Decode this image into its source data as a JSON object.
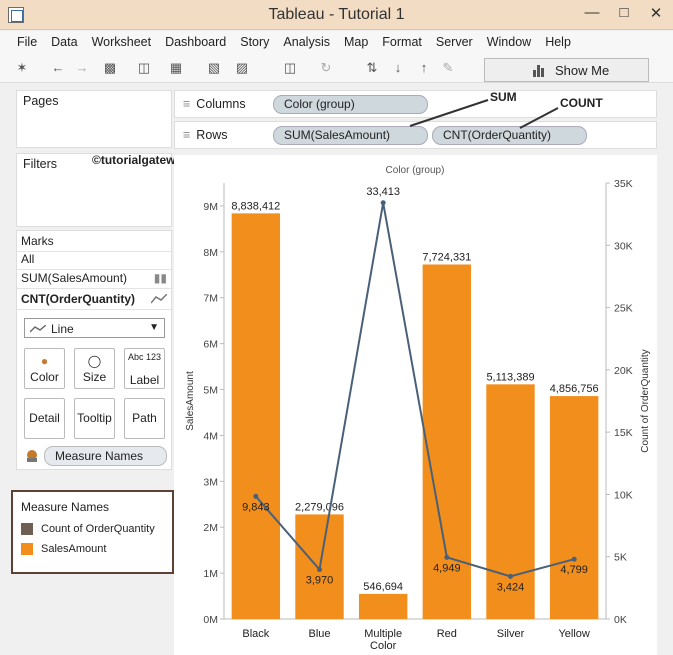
{
  "window": {
    "title": "Tableau - Tutorial 1",
    "controls": [
      "—",
      "□",
      "✕"
    ]
  },
  "menu": [
    "File",
    "Data",
    "Worksheet",
    "Dashboard",
    "Story",
    "Analysis",
    "Map",
    "Format",
    "Server",
    "Window",
    "Help"
  ],
  "toolbar": {
    "show_me_label": "Show Me"
  },
  "cards": {
    "pages_title": "Pages",
    "filters_title": "Filters",
    "credit": "©tutorialgateway.org",
    "marks": {
      "title": "Marks",
      "all": "All",
      "measure1": "SUM(SalesAmount)",
      "measure2": "CNT(OrderQuantity)",
      "mark_type": "Line",
      "buttons": {
        "color": "Color",
        "size": "Size",
        "label": "Label",
        "detail": "Detail",
        "tooltip": "Tooltip",
        "path": "Path",
        "label_icon": "Abc 123"
      },
      "pill": "Measure Names"
    }
  },
  "legend": {
    "title": "Measure Names",
    "items": [
      {
        "label": "Count of OrderQuantity",
        "color": "#6f5f52"
      },
      {
        "label": "SalesAmount",
        "color": "#f28e1c"
      }
    ]
  },
  "shelves": {
    "columns_label": "Columns",
    "columns_pill": "Color (group)",
    "rows_label": "Rows",
    "rows_pill1": "SUM(SalesAmount)",
    "rows_pill2": "CNT(OrderQuantity)",
    "callout_sum": "SUM",
    "callout_count": "COUNT"
  },
  "colors": {
    "bar": "#f28e1c",
    "line": "#4a6078",
    "accent_border": "#5d4036"
  },
  "chart_data": {
    "type": "bar",
    "title": "Color (group)",
    "xlabel": "Color",
    "ylabel": "SalesAmount",
    "y2label": "Count of OrderQuantity",
    "categories": [
      "Black",
      "Blue",
      "Multiple",
      "Red",
      "Silver",
      "Yellow"
    ],
    "ylim": [
      0,
      9500000
    ],
    "y2lim": [
      0,
      35000
    ],
    "y_ticks": [
      "0M",
      "1M",
      "2M",
      "3M",
      "4M",
      "5M",
      "6M",
      "7M",
      "8M",
      "9M"
    ],
    "y2_ticks": [
      "0K",
      "5K",
      "10K",
      "15K",
      "20K",
      "25K",
      "30K",
      "35K"
    ],
    "series": [
      {
        "name": "SalesAmount",
        "type": "bar",
        "values": [
          8838412,
          2279096,
          546694,
          7724331,
          5113389,
          4856756
        ],
        "labels": [
          "8,838,412",
          "2,279,096",
          "546,694",
          "7,724,331",
          "5,113,389",
          "4,856,756"
        ]
      },
      {
        "name": "Count of OrderQuantity",
        "type": "line",
        "values": [
          9843,
          3970,
          33413,
          4949,
          3424,
          4799
        ],
        "labels": [
          "9,843",
          "3,970",
          "33,413",
          "4,949",
          "3,424",
          "4,799"
        ]
      }
    ],
    "grid": false,
    "legend": "left-panel"
  }
}
